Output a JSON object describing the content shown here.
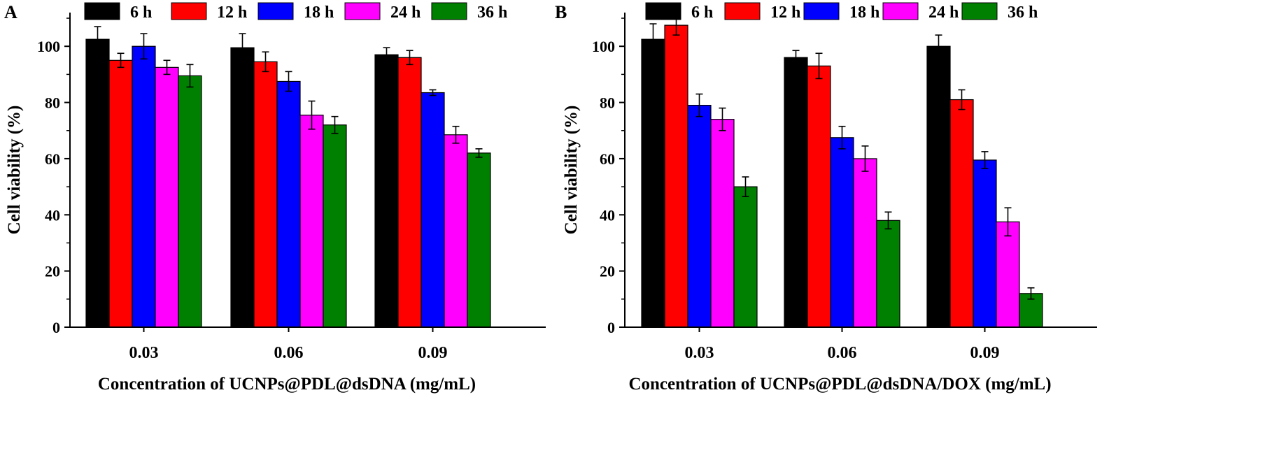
{
  "chart_data": [
    {
      "type": "bar",
      "panel_label": "A",
      "xlabel": "Concentration of UCNPs@PDL@dsDNA (mg/mL)",
      "ylabel": "Cell viability (%)",
      "ylim": [
        0,
        112
      ],
      "yticks": [
        0,
        20,
        40,
        60,
        80,
        100
      ],
      "categories": [
        "0.03",
        "0.06",
        "0.09"
      ],
      "series": [
        {
          "name": "6 h",
          "color": "#000000",
          "values": [
            102.5,
            99.5,
            97.0
          ],
          "errors": [
            4.5,
            5.0,
            2.5
          ]
        },
        {
          "name": "12 h",
          "color": "#ff0000",
          "values": [
            95.0,
            94.5,
            96.0
          ],
          "errors": [
            2.5,
            3.5,
            2.5
          ]
        },
        {
          "name": "18 h",
          "color": "#0000ff",
          "values": [
            100.0,
            87.5,
            83.5
          ],
          "errors": [
            4.5,
            3.5,
            1.0
          ]
        },
        {
          "name": "24 h",
          "color": "#ff00ff",
          "values": [
            92.5,
            75.5,
            68.5
          ],
          "errors": [
            2.5,
            5.0,
            3.0
          ]
        },
        {
          "name": "36 h",
          "color": "#008000",
          "values": [
            89.5,
            72.0,
            62.0
          ],
          "errors": [
            4.0,
            3.0,
            1.5
          ]
        }
      ]
    },
    {
      "type": "bar",
      "panel_label": "B",
      "xlabel": "Concentration of UCNPs@PDL@dsDNA/DOX (mg/mL)",
      "ylabel": "Cell viability (%)",
      "ylim": [
        0,
        112
      ],
      "yticks": [
        0,
        20,
        40,
        60,
        80,
        100
      ],
      "categories": [
        "0.03",
        "0.06",
        "0.09"
      ],
      "series": [
        {
          "name": "6 h",
          "color": "#000000",
          "values": [
            102.5,
            96.0,
            100.0
          ],
          "errors": [
            5.5,
            2.5,
            4.0
          ]
        },
        {
          "name": "12 h",
          "color": "#ff0000",
          "values": [
            107.5,
            93.0,
            81.0
          ],
          "errors": [
            3.5,
            4.5,
            3.5
          ]
        },
        {
          "name": "18 h",
          "color": "#0000ff",
          "values": [
            79.0,
            67.5,
            59.5
          ],
          "errors": [
            4.0,
            4.0,
            3.0
          ]
        },
        {
          "name": "24 h",
          "color": "#ff00ff",
          "values": [
            74.0,
            60.0,
            37.5
          ],
          "errors": [
            4.0,
            4.5,
            5.0
          ]
        },
        {
          "name": "36 h",
          "color": "#008000",
          "values": [
            50.0,
            38.0,
            12.0
          ],
          "errors": [
            3.5,
            3.0,
            2.0
          ]
        }
      ]
    }
  ]
}
